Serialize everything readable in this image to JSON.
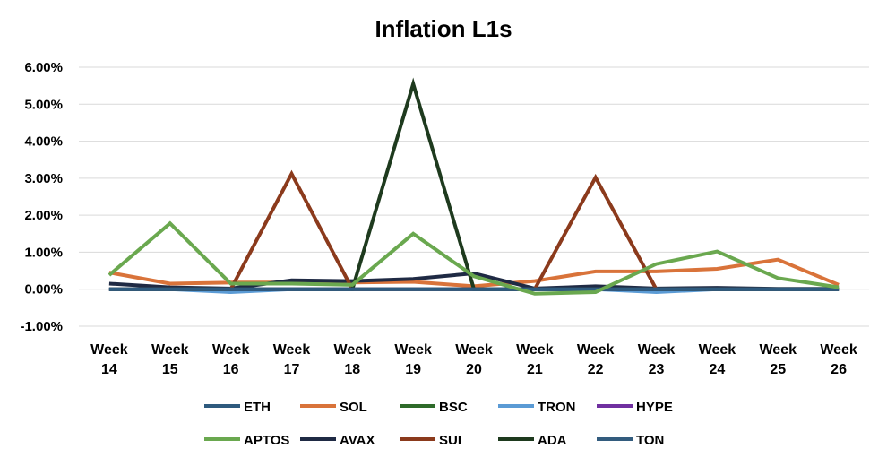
{
  "chart_data": {
    "type": "line",
    "title": "Inflation L1s",
    "xlabel": "",
    "ylabel": "",
    "categories": [
      [
        "Week",
        "14"
      ],
      [
        "Week",
        "15"
      ],
      [
        "Week",
        "16"
      ],
      [
        "Week",
        "17"
      ],
      [
        "Week",
        "18"
      ],
      [
        "Week",
        "19"
      ],
      [
        "Week",
        "20"
      ],
      [
        "Week",
        "21"
      ],
      [
        "Week",
        "22"
      ],
      [
        "Week",
        "23"
      ],
      [
        "Week",
        "24"
      ],
      [
        "Week",
        "25"
      ],
      [
        "Week",
        "26"
      ]
    ],
    "ylim": [
      -1.0,
      6.0
    ],
    "yticks": [
      6.0,
      5.0,
      4.0,
      3.0,
      2.0,
      1.0,
      0.0,
      -1.0
    ],
    "ytick_labels": [
      "6.00%",
      "5.00%",
      "4.00%",
      "3.00%",
      "2.00%",
      "1.00%",
      "0.00%",
      "-1.00%"
    ],
    "grid": true,
    "legend_position": "bottom",
    "draw_order": [
      1,
      2,
      3,
      4,
      6,
      7,
      8,
      9,
      0,
      5
    ],
    "series": [
      {
        "name": "ETH",
        "color": "#2E5A7E",
        "values": [
          0.0,
          0.0,
          0.0,
          0.0,
          0.0,
          0.0,
          0.0,
          0.0,
          0.0,
          0.0,
          0.0,
          0.0,
          0.0
        ]
      },
      {
        "name": "SOL",
        "color": "#D9733A",
        "values": [
          0.45,
          0.15,
          0.18,
          0.18,
          0.18,
          0.2,
          0.08,
          0.22,
          0.48,
          0.48,
          0.55,
          0.8,
          0.12
        ]
      },
      {
        "name": "BSC",
        "color": "#2E6B2A",
        "values": [
          0.0,
          0.0,
          0.0,
          0.0,
          0.0,
          0.0,
          0.0,
          0.0,
          0.0,
          0.0,
          0.0,
          0.0,
          0.0
        ]
      },
      {
        "name": "TRON",
        "color": "#5B9BD5",
        "values": [
          0.0,
          0.0,
          -0.08,
          0.0,
          0.0,
          0.0,
          0.0,
          0.0,
          0.0,
          -0.08,
          0.0,
          0.0,
          0.0
        ]
      },
      {
        "name": "HYPE",
        "color": "#7030A0",
        "values": [
          0.0,
          0.0,
          0.0,
          0.0,
          0.0,
          0.0,
          0.0,
          0.0,
          0.0,
          0.0,
          0.0,
          0.0,
          0.0
        ]
      },
      {
        "name": "APTOS",
        "color": "#6AA84F",
        "values": [
          0.38,
          1.78,
          0.15,
          0.15,
          0.12,
          1.5,
          0.35,
          -0.12,
          -0.08,
          0.68,
          1.02,
          0.3,
          0.05
        ]
      },
      {
        "name": "AVAX",
        "color": "#1F2A44",
        "values": [
          0.15,
          0.05,
          0.02,
          0.24,
          0.22,
          0.28,
          0.43,
          0.02,
          0.08,
          0.02,
          0.04,
          0.01,
          0.01
        ]
      },
      {
        "name": "SUI",
        "color": "#8B3A1C",
        "values": [
          0.0,
          0.0,
          0.0,
          3.12,
          0.0,
          0.0,
          0.0,
          0.0,
          3.02,
          0.0,
          0.0,
          0.0,
          0.0
        ]
      },
      {
        "name": "ADA",
        "color": "#1E3A1E",
        "values": [
          0.0,
          0.0,
          0.0,
          0.0,
          0.0,
          5.55,
          0.0,
          0.0,
          0.0,
          0.0,
          0.0,
          0.0,
          0.0
        ]
      },
      {
        "name": "TON",
        "color": "#335C7E",
        "values": [
          0.0,
          0.0,
          0.0,
          0.0,
          0.0,
          0.0,
          0.0,
          0.0,
          0.0,
          0.0,
          0.0,
          0.0,
          0.0
        ]
      }
    ]
  }
}
